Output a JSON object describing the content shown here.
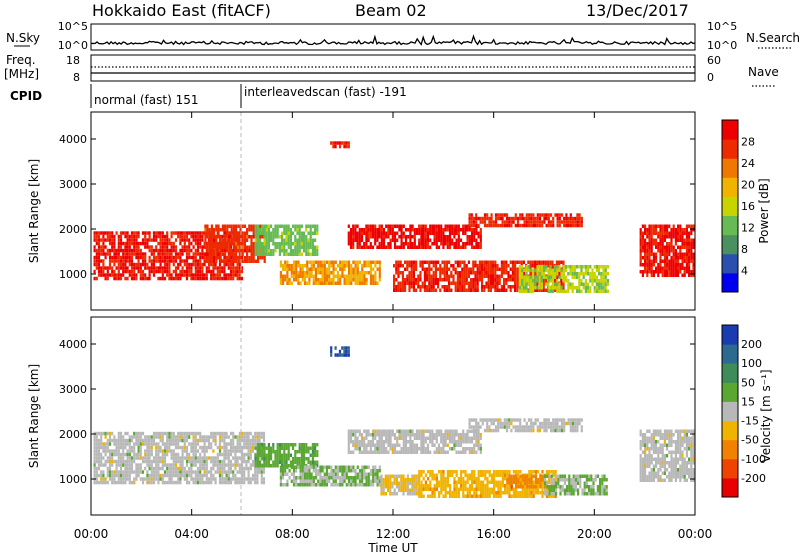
{
  "header": {
    "radar": "Hokkaido East (fitACF)",
    "beam": "Beam 02",
    "date": "13/Dec/2017"
  },
  "noise_panel": {
    "left_label": "N.Sky",
    "right_label": "N.Search",
    "left_ticks": [
      "10^5",
      "10^0"
    ],
    "right_ticks": [
      "10^5",
      "10^0"
    ]
  },
  "freq_panel": {
    "left_label_1": "Freq.",
    "left_label_2": "[MHz]",
    "right_label": "Nave",
    "left_ticks": [
      "18",
      "8"
    ],
    "right_ticks": [
      "60",
      "0"
    ]
  },
  "cpid_panel": {
    "label": "CPID",
    "modes": [
      "normal (fast) 151",
      "interleavedscan (fast) -191"
    ]
  },
  "time_axis": {
    "title": "Time UT",
    "ticks": [
      "00:00",
      "04:00",
      "08:00",
      "12:00",
      "16:00",
      "20:00",
      "00:00"
    ]
  },
  "range_axis": {
    "title": "Slant Range [km]",
    "ticks": [
      "1000",
      "2000",
      "3000",
      "4000"
    ]
  },
  "power_scale": {
    "title": "Power [dB]",
    "ticks": [
      "4",
      "8",
      "12",
      "16",
      "20",
      "24",
      "28"
    ]
  },
  "velocity_scale": {
    "title": "Velocity [m s⁻¹]",
    "ticks": [
      "-200",
      "-100",
      "-50",
      "-15",
      "15",
      "50",
      "100",
      "200"
    ]
  },
  "colors": {
    "power": [
      "#0000ee",
      "#2b4faf",
      "#4c8f60",
      "#66bb55",
      "#c8d400",
      "#f0b400",
      "#f07800",
      "#ee2a00",
      "#ee0000"
    ],
    "velocity": [
      "#e80000",
      "#ee4400",
      "#f08200",
      "#f0b400",
      "#b8b8b8",
      "#5aa832",
      "#3d8c5a",
      "#2d6a8f",
      "#1a3cb0"
    ]
  },
  "chart_data": [
    {
      "type": "heatmap",
      "name": "power",
      "x_unit": "hours UT",
      "y_unit": "km",
      "xlim": [
        0,
        24
      ],
      "ylim": [
        200,
        4600
      ],
      "clim": [
        0,
        30
      ],
      "regions": [
        {
          "t0": 0.1,
          "t1": 6.0,
          "r0": 900,
          "r1": 1950,
          "value": 27
        },
        {
          "t0": 4.5,
          "t1": 6.9,
          "r0": 1300,
          "r1": 2100,
          "value": 25
        },
        {
          "t0": 6.5,
          "t1": 9.0,
          "r0": 1400,
          "r1": 2100,
          "value": 12
        },
        {
          "t0": 7.5,
          "t1": 11.5,
          "r0": 800,
          "r1": 1300,
          "value": 20
        },
        {
          "t0": 9.5,
          "t1": 10.2,
          "r0": 3800,
          "r1": 3950,
          "value": 26
        },
        {
          "t0": 10.2,
          "t1": 15.5,
          "r0": 1600,
          "r1": 2100,
          "value": 28
        },
        {
          "t0": 15.0,
          "t1": 19.5,
          "r0": 2050,
          "r1": 2350,
          "value": 26
        },
        {
          "t0": 12.0,
          "t1": 18.8,
          "r0": 650,
          "r1": 1300,
          "value": 26
        },
        {
          "t0": 17.0,
          "t1": 20.5,
          "r0": 650,
          "r1": 1200,
          "value": 14
        },
        {
          "t0": 21.8,
          "t1": 24.0,
          "r0": 1000,
          "r1": 2100,
          "value": 27
        }
      ]
    },
    {
      "type": "heatmap",
      "name": "velocity",
      "x_unit": "hours UT",
      "y_unit": "km",
      "xlim": [
        0,
        24
      ],
      "ylim": [
        200,
        4600
      ],
      "clim": [
        -250,
        250
      ],
      "regions": [
        {
          "t0": 0.1,
          "t1": 6.9,
          "r0": 900,
          "r1": 2050,
          "value": 0
        },
        {
          "t0": 6.5,
          "t1": 9.0,
          "r0": 1300,
          "r1": 1800,
          "value": 60
        },
        {
          "t0": 7.5,
          "t1": 11.5,
          "r0": 850,
          "r1": 1300,
          "value": 30
        },
        {
          "t0": 9.5,
          "t1": 10.2,
          "r0": 3750,
          "r1": 3950,
          "value": 200
        },
        {
          "t0": 10.2,
          "t1": 15.5,
          "r0": 1600,
          "r1": 2100,
          "value": 0
        },
        {
          "t0": 15.0,
          "t1": 19.5,
          "r0": 2050,
          "r1": 2350,
          "value": 0
        },
        {
          "t0": 11.5,
          "t1": 13.0,
          "r0": 700,
          "r1": 1100,
          "value": -30
        },
        {
          "t0": 13.0,
          "t1": 18.5,
          "r0": 650,
          "r1": 1200,
          "value": -60
        },
        {
          "t0": 16.5,
          "t1": 18.0,
          "r0": 800,
          "r1": 1100,
          "value": -110
        },
        {
          "t0": 18.0,
          "t1": 20.5,
          "r0": 650,
          "r1": 1100,
          "value": 30
        },
        {
          "t0": 21.8,
          "t1": 24.0,
          "r0": 1000,
          "r1": 2100,
          "value": 0
        }
      ]
    }
  ]
}
